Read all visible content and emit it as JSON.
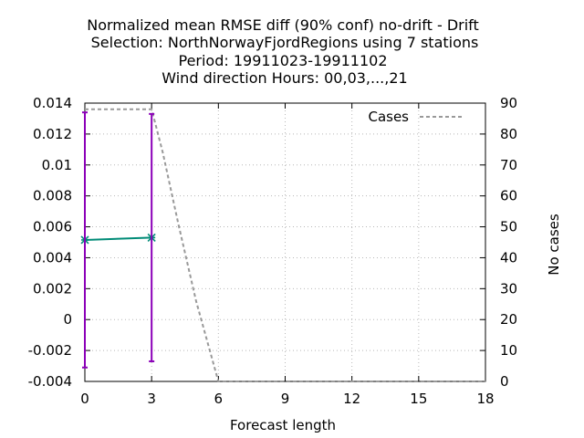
{
  "chart_data": {
    "type": "line",
    "title_lines": [
      "Normalized mean RMSE diff (90% conf) no-drift - Drift",
      "Selection: NorthNorwayFjordRegions using     7 stations",
      "Period: 19911023-19911102",
      "Wind direction   Hours:  00,03,...,21"
    ],
    "xlabel": "Forecast length",
    "ylabel_right": "No cases",
    "xlim": [
      0,
      18
    ],
    "ylim": [
      -0.004,
      0.014
    ],
    "y2lim": [
      0,
      90
    ],
    "x_ticks": [
      "0",
      "3",
      "6",
      "9",
      "12",
      "15",
      "18"
    ],
    "y_ticks": [
      "-0.004",
      "-0.002",
      "0",
      "0.002",
      "0.004",
      "0.006",
      "0.008",
      "0.01",
      "0.012",
      "0.014"
    ],
    "y2_ticks": [
      "0",
      "10",
      "20",
      "30",
      "40",
      "50",
      "60",
      "70",
      "80",
      "90"
    ],
    "grid": true,
    "legend_position": "top-right",
    "series": [
      {
        "name": "Cases",
        "axis": "right",
        "style": "dashed",
        "color": "#999999",
        "x": [
          0,
          3,
          3.5,
          4.2,
          5,
          6,
          9,
          12,
          15,
          18
        ],
        "values": [
          88,
          88,
          74,
          51,
          26,
          0,
          0,
          0,
          0,
          0
        ]
      },
      {
        "axis": "left",
        "style": "line-points",
        "color": "#008b77",
        "x": [
          0,
          3
        ],
        "values": [
          0.00515,
          0.0053
        ]
      }
    ],
    "error_bars": {
      "color": "#8b00b8",
      "items": [
        {
          "x": 0,
          "low": -0.0031,
          "high": 0.0134
        },
        {
          "x": 3,
          "low": -0.0027,
          "high": 0.0133
        }
      ]
    }
  }
}
